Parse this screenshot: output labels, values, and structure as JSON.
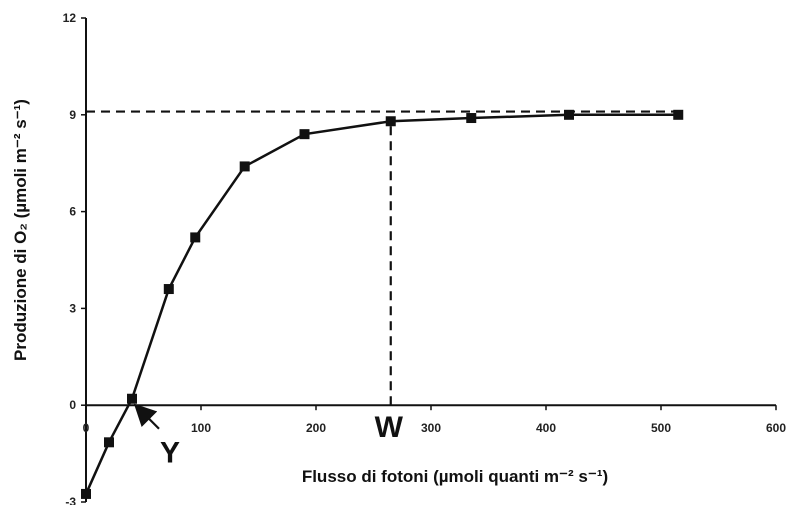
{
  "chart_data": {
    "type": "line",
    "title": "",
    "xlabel": "Flusso di fotoni (µmoli quanti m⁻² s⁻¹)",
    "ylabel": "Produzione di O₂ (µmoli m⁻² s⁻¹)",
    "xlim": [
      0,
      600
    ],
    "ylim": [
      -3,
      12
    ],
    "xticks": [
      "0",
      "100",
      "200",
      "300",
      "400",
      "500",
      "600"
    ],
    "yticks": [
      "-3",
      "0",
      "3",
      "6",
      "9",
      "12"
    ],
    "grid": false,
    "series": [
      {
        "x": [
          0,
          20,
          40,
          72,
          95,
          138,
          190,
          265,
          335,
          420,
          515
        ],
        "y": [
          -2.75,
          -1.15,
          0.2,
          3.6,
          5.2,
          7.4,
          8.4,
          8.8,
          8.9,
          9.0,
          9.0
        ]
      }
    ],
    "reference_lines": [
      {
        "kind": "horizontal",
        "y": 9.1,
        "x_from": 0,
        "x_to": 515
      },
      {
        "kind": "vertical",
        "x": 265,
        "y_from": 0,
        "y_to": 8.8
      }
    ],
    "annotations": [
      {
        "text": "Y",
        "points_to": {
          "x": 40,
          "y": 0.2
        }
      },
      {
        "text": "W",
        "at": {
          "x": 265,
          "y": 0
        }
      }
    ],
    "colors": {
      "line": "#111111",
      "marker": "#111111",
      "axis": "#111111"
    }
  }
}
